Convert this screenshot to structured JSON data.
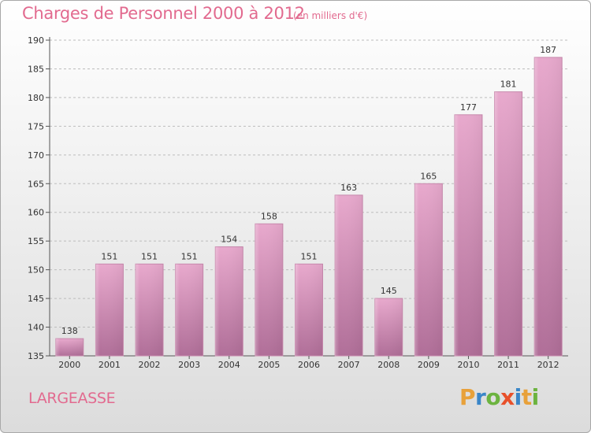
{
  "title": "Charges de Personnel 2000 à 2012",
  "subtitle": "(en milliers d'€)",
  "commune": "LARGEASSE",
  "logo": {
    "text": "Proxiti",
    "letters": [
      {
        "char": "P",
        "color": "#e8a13a"
      },
      {
        "char": "r",
        "color": "#3a86c8"
      },
      {
        "char": "o",
        "color": "#6cb33f"
      },
      {
        "char": "x",
        "color": "#e8502a"
      },
      {
        "char": "i",
        "color": "#3a86c8"
      },
      {
        "char": "t",
        "color": "#e8a13a"
      },
      {
        "char": "i",
        "color": "#6cb33f"
      }
    ]
  },
  "chart_data": {
    "type": "bar",
    "categories": [
      "2000",
      "2001",
      "2002",
      "2003",
      "2004",
      "2005",
      "2006",
      "2007",
      "2008",
      "2009",
      "2010",
      "2011",
      "2012"
    ],
    "values": [
      138,
      151,
      151,
      151,
      154,
      158,
      151,
      163,
      145,
      165,
      177,
      181,
      187
    ],
    "ylim": [
      135,
      190
    ],
    "yticks": [
      135,
      140,
      145,
      150,
      155,
      160,
      165,
      170,
      175,
      180,
      185,
      190
    ],
    "grid": true,
    "bar_color": "#d98fb8",
    "legend": "none"
  }
}
